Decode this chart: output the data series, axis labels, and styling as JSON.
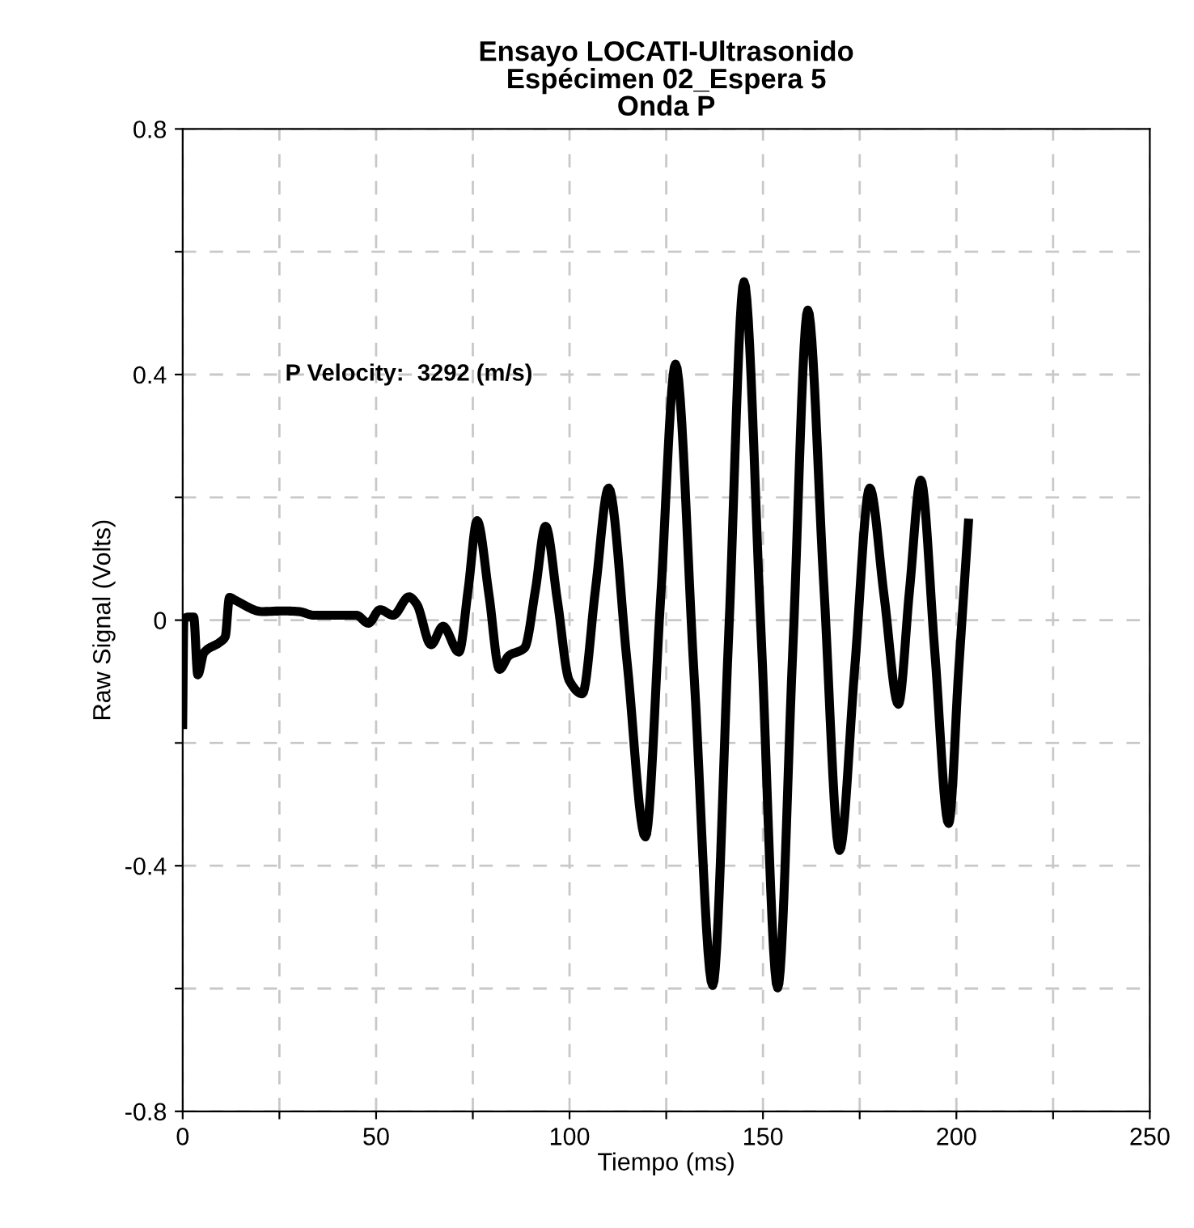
{
  "chart_data": {
    "type": "line",
    "title": "Ensayo LOCATI-Ultrasonido\nEspécimen 02_Espera 5\nOnda P",
    "xlabel": "Tiempo (ms)",
    "ylabel": "Raw Signal (Volts)",
    "annotations": [
      "P Velocity:  3292 (m/s)"
    ],
    "series": [
      {
        "color": "#000000",
        "x": [
          0,
          0.3,
          1.5,
          2.85,
          3.9,
          5.5,
          9.6,
          11,
          12.1,
          13.7,
          20.5,
          25.9,
          30,
          34,
          44.9,
          48,
          51,
          54.4,
          58.5,
          60.5,
          64.2,
          67.3,
          71.4,
          73.8,
          76.1,
          79.2,
          81.9,
          84.3,
          88.4,
          91.2,
          93.8,
          96.9,
          99.9,
          103.3,
          106.7,
          110.1,
          114.9,
          119.6,
          123.5,
          127.4,
          132.2,
          137,
          141.1,
          145.1,
          149.5,
          153.8,
          157.7,
          161.6,
          165.7,
          169.8,
          173.7,
          177.6,
          181.3,
          185,
          187.9,
          190.8,
          194.4,
          198,
          200.6,
          203.1
        ],
        "values": [
          -0.17,
          0.0,
          0.005,
          0.005,
          -0.089,
          -0.053,
          -0.036,
          -0.027,
          0.037,
          0.032,
          0.014,
          0.015,
          0.014,
          0.008,
          0.008,
          -0.005,
          0.017,
          0.008,
          0.038,
          0.026,
          -0.04,
          -0.01,
          -0.052,
          0.05,
          0.162,
          0.04,
          -0.08,
          -0.058,
          -0.045,
          0.05,
          0.153,
          0.03,
          -0.098,
          -0.12,
          0.05,
          0.215,
          -0.07,
          -0.353,
          0.03,
          0.417,
          -0.09,
          -0.595,
          -0.03,
          0.551,
          -0.02,
          -0.599,
          -0.05,
          0.505,
          0.06,
          -0.375,
          -0.08,
          0.215,
          0.04,
          -0.137,
          0.05,
          0.228,
          -0.05,
          -0.331,
          -0.08,
          0.158
        ]
      }
    ],
    "xlim": [
      0,
      250
    ],
    "ylim": [
      -0.8,
      0.8
    ],
    "xticks": [
      0,
      {
        "value": 25,
        "label": null
      },
      50,
      {
        "value": 75,
        "label": null
      },
      100,
      {
        "value": 125,
        "label": null
      },
      150,
      {
        "value": 175,
        "label": null
      },
      200,
      {
        "value": 225,
        "label": null
      },
      250
    ],
    "yticks": [
      {
        "value": -0.8,
        "label": "-0.8"
      },
      {
        "value": -0.6,
        "label": null
      },
      {
        "value": -0.4,
        "label": "-0.4"
      },
      {
        "value": -0.2,
        "label": null
      },
      0,
      {
        "value": 0.2,
        "label": null
      },
      {
        "value": 0.4,
        "label": "0.4"
      },
      {
        "value": 0.6,
        "label": null
      },
      {
        "value": 0.8,
        "label": "0.8"
      }
    ],
    "grid": true,
    "legend": false,
    "marker": "none",
    "line_style": "solid"
  }
}
